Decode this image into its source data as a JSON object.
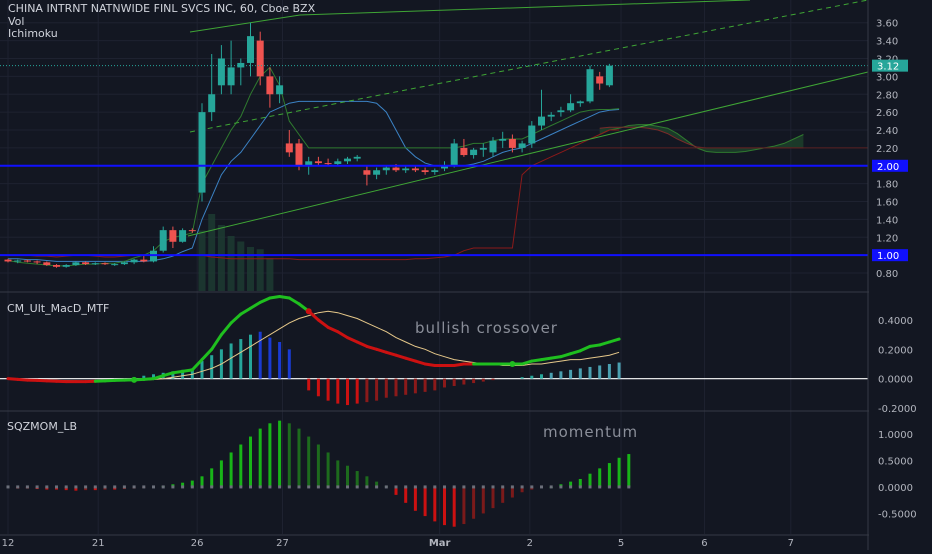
{
  "header": {
    "title": "CHINA INTRNT NATNWIDE FINL SVCS INC, 60, Cboe BZX",
    "indicator1": "Vol",
    "indicator2": "Ichimoku"
  },
  "colors": {
    "background": "#131722",
    "up": "#26a69a",
    "down": "#ef5350",
    "level_line": "#1010ff",
    "trend": "#3fa535",
    "macd_fast": "#1fbf1f",
    "macd_slow_down": "#cc1111",
    "signal": "#e6c88a",
    "mom_up": "#18b418",
    "mom_down": "#cc1111",
    "ichimoku_base": "#3b82c4",
    "ichimoku_lead": "#2f7a2f",
    "ichimoku_lag": "#8b1a1a",
    "axis_text": "#b2b5be",
    "grid": "#1e2230"
  },
  "x_axis": {
    "ticks": [
      {
        "label": "12",
        "index": 0
      },
      {
        "label": "21",
        "index": 9.3
      },
      {
        "label": "26",
        "index": 19.5
      },
      {
        "label": "27",
        "index": 28.3
      },
      {
        "label": "Mar",
        "index": 44.5
      },
      {
        "label": "2",
        "index": 53.8
      },
      {
        "label": "5",
        "index": 63.2
      },
      {
        "label": "6",
        "index": 71.8
      },
      {
        "label": "7",
        "index": 80.7
      }
    ]
  },
  "chart_data": [
    {
      "type": "candlestick",
      "name": "price",
      "ylim": [
        0.7,
        3.72
      ],
      "yticks": [
        "3.60",
        "3.40",
        "3.20",
        "3.00",
        "2.80",
        "2.60",
        "2.40",
        "2.20",
        "2.00",
        "1.80",
        "1.60",
        "1.40",
        "1.20",
        "1.00",
        "0.80"
      ],
      "last_price": {
        "label": "3.12",
        "value": 3.12
      },
      "levels": [
        {
          "label": "2.00",
          "value": 2.0
        },
        {
          "label": "1.00",
          "value": 1.0
        }
      ],
      "candles": [
        [
          0.95,
          0.96,
          0.92,
          0.93
        ],
        [
          0.93,
          0.95,
          0.91,
          0.94
        ],
        [
          0.94,
          0.95,
          0.92,
          0.93
        ],
        [
          0.93,
          0.94,
          0.9,
          0.92
        ],
        [
          0.92,
          0.93,
          0.88,
          0.89
        ],
        [
          0.89,
          0.9,
          0.86,
          0.87
        ],
        [
          0.87,
          0.9,
          0.86,
          0.89
        ],
        [
          0.89,
          0.93,
          0.88,
          0.92
        ],
        [
          0.92,
          0.93,
          0.89,
          0.9
        ],
        [
          0.9,
          0.92,
          0.89,
          0.91
        ],
        [
          0.91,
          0.92,
          0.89,
          0.9
        ],
        [
          0.9,
          0.91,
          0.88,
          0.9
        ],
        [
          0.9,
          0.93,
          0.89,
          0.92
        ],
        [
          0.92,
          0.96,
          0.9,
          0.95
        ],
        [
          0.95,
          1.0,
          0.92,
          0.93
        ],
        [
          0.93,
          1.1,
          0.92,
          1.05
        ],
        [
          1.05,
          1.32,
          1.03,
          1.28
        ],
        [
          1.28,
          1.32,
          1.08,
          1.15
        ],
        [
          1.15,
          1.3,
          1.14,
          1.28
        ],
        [
          1.28,
          1.3,
          1.25,
          1.27
        ],
        [
          1.7,
          2.7,
          1.6,
          2.6
        ],
        [
          2.6,
          3.25,
          2.5,
          2.8
        ],
        [
          2.9,
          3.35,
          2.8,
          3.2
        ],
        [
          2.9,
          3.4,
          2.8,
          3.1
        ],
        [
          3.1,
          3.2,
          2.9,
          3.15
        ],
        [
          3.15,
          3.6,
          3.0,
          3.45
        ],
        [
          3.4,
          3.5,
          2.9,
          3.0
        ],
        [
          3.0,
          3.1,
          2.65,
          2.8
        ],
        [
          2.8,
          3.0,
          2.7,
          2.9
        ],
        [
          2.25,
          2.4,
          2.1,
          2.15
        ],
        [
          2.25,
          2.3,
          1.95,
          2.0
        ],
        [
          2.0,
          2.1,
          1.9,
          2.05
        ],
        [
          2.05,
          2.1,
          2.0,
          2.03
        ],
        [
          2.03,
          2.08,
          2.0,
          2.02
        ],
        [
          2.02,
          2.08,
          2.0,
          2.05
        ],
        [
          2.05,
          2.1,
          2.02,
          2.08
        ],
        [
          2.08,
          2.12,
          2.05,
          2.1
        ],
        [
          1.95,
          2.0,
          1.78,
          1.9
        ],
        [
          1.9,
          1.98,
          1.85,
          1.95
        ],
        [
          1.95,
          2.0,
          1.9,
          1.98
        ],
        [
          1.98,
          2.02,
          1.93,
          1.95
        ],
        [
          1.95,
          2.0,
          1.92,
          1.97
        ],
        [
          1.97,
          2.0,
          1.93,
          1.95
        ],
        [
          1.95,
          1.98,
          1.9,
          1.93
        ],
        [
          1.93,
          1.97,
          1.9,
          1.95
        ],
        [
          1.97,
          2.05,
          1.94,
          2.0
        ],
        [
          2.0,
          2.3,
          1.98,
          2.25
        ],
        [
          2.2,
          2.3,
          2.1,
          2.12
        ],
        [
          2.12,
          2.2,
          2.08,
          2.18
        ],
        [
          2.18,
          2.25,
          2.1,
          2.2
        ],
        [
          2.15,
          2.32,
          2.1,
          2.28
        ],
        [
          2.28,
          2.38,
          2.2,
          2.3
        ],
        [
          2.3,
          2.35,
          2.15,
          2.2
        ],
        [
          2.2,
          2.28,
          2.15,
          2.25
        ],
        [
          2.25,
          2.5,
          2.2,
          2.45
        ],
        [
          2.45,
          2.85,
          2.4,
          2.55
        ],
        [
          2.55,
          2.6,
          2.5,
          2.57
        ],
        [
          2.6,
          2.66,
          2.55,
          2.62
        ],
        [
          2.62,
          2.8,
          2.6,
          2.7
        ],
        [
          2.7,
          2.73,
          2.66,
          2.72
        ],
        [
          2.72,
          3.12,
          2.7,
          3.08
        ],
        [
          3.0,
          3.05,
          2.85,
          2.92
        ],
        [
          2.9,
          3.14,
          2.88,
          3.12
        ]
      ],
      "series": [
        {
          "name": "",
          "role": "lagging",
          "values": [
            1.0,
            1.0,
            1.0,
            0.99,
            0.99,
            0.98,
            0.99,
            1.0,
            1.0,
            0.99,
            0.98,
            0.98,
            0.99,
            1.0,
            1.0,
            1.0,
            1.0,
            1.0,
            1.0,
            1.0,
            1.0,
            0.98,
            0.97,
            0.96,
            0.96,
            0.96,
            0.96,
            0.96,
            0.96,
            0.96,
            0.95,
            0.95,
            0.95,
            0.95,
            0.95,
            0.95,
            0.95,
            0.95,
            0.95,
            0.95,
            0.95,
            0.95,
            0.96,
            0.96,
            0.97,
            0.98,
            1.0,
            1.05,
            1.08,
            1.08,
            1.08,
            1.08,
            1.08,
            1.9,
            2.0,
            2.05,
            2.1,
            2.15,
            2.2,
            2.25,
            2.3,
            2.35,
            2.4,
            2.4
          ]
        },
        {
          "name": "",
          "role": "base",
          "values": [
            0.96,
            0.96,
            0.95,
            0.95,
            0.94,
            0.93,
            0.93,
            0.93,
            0.93,
            0.93,
            0.93,
            0.93,
            0.93,
            0.93,
            0.93,
            0.94,
            0.96,
            0.99,
            1.04,
            1.08,
            1.4,
            1.65,
            1.9,
            2.05,
            2.15,
            2.3,
            2.45,
            2.6,
            2.65,
            2.7,
            2.72,
            2.72,
            2.72,
            2.72,
            2.72,
            2.72,
            2.72,
            2.72,
            2.7,
            2.6,
            2.4,
            2.2,
            2.1,
            2.03,
            2.0,
            2.0,
            2.0,
            2.0,
            2.02,
            2.05,
            2.1,
            2.15,
            2.18,
            2.2,
            2.25,
            2.3,
            2.35,
            2.4,
            2.45,
            2.5,
            2.55,
            2.6,
            2.62,
            2.63
          ]
        },
        {
          "name": "",
          "role": "lead",
          "values": [
            0.94,
            0.92,
            0.91,
            0.9,
            0.89,
            0.88,
            0.88,
            0.89,
            0.9,
            0.9,
            0.91,
            0.91,
            0.93,
            0.97,
            1.0,
            1.05,
            1.15,
            1.2,
            1.22,
            1.25,
            1.8,
            2.0,
            2.2,
            2.4,
            2.55,
            2.8,
            3.0,
            3.1,
            2.9,
            2.5,
            2.35,
            2.2,
            2.2,
            2.2,
            2.2,
            2.2,
            2.2,
            2.2,
            2.2,
            2.2,
            2.2,
            2.2,
            2.2,
            2.2,
            2.2,
            2.2,
            2.2,
            2.22,
            2.25,
            2.25,
            2.28,
            2.3,
            2.3,
            2.3,
            2.35,
            2.4,
            2.45,
            2.5,
            2.55,
            2.6,
            2.62,
            2.63,
            2.63,
            2.64
          ]
        },
        {
          "name": "",
          "role": "cloud_a",
          "values": [
            2.35,
            2.4,
            2.42,
            2.45,
            2.46,
            2.46,
            2.44,
            2.42,
            2.36,
            2.28,
            2.2,
            2.16,
            2.15,
            2.15,
            2.15,
            2.16,
            2.18,
            2.2,
            2.22,
            2.25,
            2.3,
            2.35
          ]
        },
        {
          "name": "",
          "role": "cloud_b",
          "values": [
            2.42,
            2.43,
            2.43,
            2.43,
            2.43,
            2.42,
            2.4,
            2.36,
            2.3,
            2.25,
            2.21,
            2.2,
            2.2,
            2.2,
            2.2,
            2.2,
            2.2,
            2.2,
            2.2,
            2.2,
            2.2,
            2.2
          ]
        }
      ],
      "cloud_start_index": 61,
      "volume_bars": [
        0,
        0,
        0,
        0,
        0,
        0,
        0,
        0,
        0,
        0,
        0,
        0,
        0,
        0,
        0,
        0,
        0,
        0,
        0,
        0,
        0.55,
        0.7,
        0.6,
        0.5,
        0.45,
        0.4,
        0.38,
        0.3
      ]
    },
    {
      "type": "line+histogram",
      "name": "CM_Ult_MacD_MTF",
      "ylim": [
        -0.2,
        0.55
      ],
      "yticks": [
        "0.4000",
        "0.2000",
        "0.0000",
        "-0.2000"
      ],
      "annotation": "bullish crossover",
      "macd": [
        0.0,
        -0.005,
        -0.01,
        -0.012,
        -0.015,
        -0.018,
        -0.02,
        -0.02,
        -0.02,
        -0.018,
        -0.015,
        -0.012,
        -0.01,
        -0.008,
        -0.005,
        0.0,
        0.02,
        0.04,
        0.05,
        0.06,
        0.13,
        0.2,
        0.3,
        0.38,
        0.44,
        0.48,
        0.52,
        0.55,
        0.56,
        0.55,
        0.51,
        0.46,
        0.4,
        0.35,
        0.32,
        0.28,
        0.25,
        0.22,
        0.2,
        0.18,
        0.16,
        0.14,
        0.12,
        0.1,
        0.09,
        0.09,
        0.09,
        0.1,
        0.1,
        0.1,
        0.1,
        0.1,
        0.1,
        0.1,
        0.12,
        0.13,
        0.14,
        0.15,
        0.17,
        0.19,
        0.22,
        0.23,
        0.25,
        0.27
      ],
      "signal": [
        0.0,
        0.0,
        -0.005,
        -0.008,
        -0.01,
        -0.012,
        -0.014,
        -0.015,
        -0.016,
        -0.016,
        -0.015,
        -0.014,
        -0.013,
        -0.011,
        -0.009,
        -0.006,
        0.0,
        0.01,
        0.02,
        0.03,
        0.05,
        0.07,
        0.1,
        0.14,
        0.18,
        0.22,
        0.26,
        0.3,
        0.34,
        0.38,
        0.41,
        0.43,
        0.45,
        0.46,
        0.45,
        0.43,
        0.41,
        0.38,
        0.35,
        0.32,
        0.28,
        0.25,
        0.22,
        0.2,
        0.17,
        0.15,
        0.13,
        0.12,
        0.11,
        0.1,
        0.1,
        0.09,
        0.09,
        0.09,
        0.1,
        0.1,
        0.11,
        0.12,
        0.13,
        0.13,
        0.14,
        0.15,
        0.16,
        0.18
      ],
      "histogram": [
        0,
        0,
        0,
        0,
        0,
        0,
        0,
        0,
        0,
        0,
        0,
        0,
        0,
        0.01,
        0.02,
        0.03,
        0.04,
        0.05,
        0.06,
        0.07,
        0.12,
        0.16,
        0.2,
        0.24,
        0.27,
        0.3,
        0.32,
        0.28,
        0.25,
        0.2,
        0.0,
        -0.08,
        -0.12,
        -0.15,
        -0.17,
        -0.18,
        -0.17,
        -0.16,
        -0.15,
        -0.13,
        -0.12,
        -0.11,
        -0.1,
        -0.09,
        -0.08,
        -0.06,
        -0.05,
        -0.04,
        -0.03,
        -0.02,
        -0.01,
        0,
        0,
        0.01,
        0.02,
        0.03,
        0.04,
        0.05,
        0.06,
        0.07,
        0.08,
        0.09,
        0.1,
        0.11
      ]
    },
    {
      "type": "histogram",
      "name": "SQZMOM_LB",
      "ylim": [
        -0.85,
        1.3
      ],
      "yticks": [
        "1.0000",
        "0.5000",
        "0.0000",
        "-0.5000"
      ],
      "annotation": "momentum",
      "values": [
        -0.02,
        -0.03,
        -0.03,
        -0.04,
        -0.05,
        -0.05,
        -0.06,
        -0.07,
        -0.06,
        -0.06,
        -0.05,
        -0.05,
        -0.04,
        -0.03,
        -0.02,
        0.0,
        0.02,
        0.05,
        0.08,
        0.12,
        0.2,
        0.35,
        0.5,
        0.65,
        0.8,
        0.95,
        1.1,
        1.2,
        1.25,
        1.2,
        1.1,
        0.95,
        0.8,
        0.65,
        0.5,
        0.4,
        0.3,
        0.2,
        0.1,
        0.02,
        -0.15,
        -0.3,
        -0.45,
        -0.55,
        -0.65,
        -0.72,
        -0.75,
        -0.7,
        -0.6,
        -0.5,
        -0.4,
        -0.3,
        -0.2,
        -0.1,
        -0.05,
        -0.02,
        0.0,
        0.05,
        0.1,
        0.15,
        0.25,
        0.35,
        0.45,
        0.55,
        0.62
      ]
    }
  ]
}
